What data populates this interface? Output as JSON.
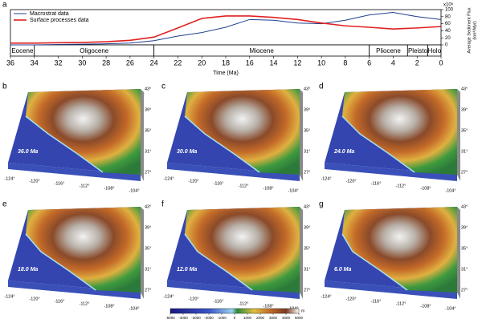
{
  "chart_data": {
    "type": "line",
    "panel_label": "a",
    "xlabel": "Time (Ma)",
    "ylabel": [
      "Average Sediment Flux",
      "(km³/Myr)"
    ],
    "y_scale_label": "x10⁶",
    "y_axis_side": "right",
    "x": [
      36,
      34,
      32,
      30,
      28,
      26,
      24,
      22,
      20,
      18,
      16,
      14,
      12,
      10,
      8,
      6,
      4,
      2,
      0
    ],
    "xlim": [
      36,
      0
    ],
    "xticks": [
      36,
      34,
      32,
      30,
      28,
      26,
      24,
      22,
      20,
      18,
      16,
      14,
      12,
      10,
      8,
      6,
      4,
      2,
      0
    ],
    "ylim": [
      0,
      100
    ],
    "yticks": [
      0,
      20,
      40,
      60,
      80,
      100
    ],
    "legend": "upper left",
    "series": [
      {
        "name": "Macrostrat data",
        "color": "#1f3f8f",
        "values": [
          0,
          0,
          1,
          2,
          3,
          5,
          12,
          25,
          35,
          50,
          72,
          70,
          62,
          60,
          70,
          85,
          92,
          80,
          72
        ]
      },
      {
        "name": "Surface processes data",
        "color": "#e02020",
        "values": [
          5,
          5,
          6,
          7,
          9,
          13,
          22,
          48,
          75,
          82,
          82,
          78,
          72,
          62,
          54,
          50,
          45,
          48,
          52
        ]
      }
    ],
    "epochs": [
      {
        "name": "Eocene",
        "start": 36,
        "end": 34
      },
      {
        "name": "Oligocene",
        "start": 34,
        "end": 24
      },
      {
        "name": "Miocene",
        "start": 24,
        "end": 6
      },
      {
        "name": "Pliocene",
        "start": 6,
        "end": 2.8
      },
      {
        "name": "Pleisto",
        "start": 2.8,
        "end": 1.1
      },
      {
        "name": "Holo",
        "start": 1.1,
        "end": 0
      }
    ]
  },
  "maps": [
    {
      "letter": "b",
      "age": "36.0 Ma"
    },
    {
      "letter": "c",
      "age": "30.0 Ma"
    },
    {
      "letter": "d",
      "age": "24.0 Ma"
    },
    {
      "letter": "e",
      "age": "18.0 Ma"
    },
    {
      "letter": "f",
      "age": "12.0 Ma"
    },
    {
      "letter": "g",
      "age": "6.0 Ma"
    }
  ],
  "longitudes": [
    "-124°",
    "-120°",
    "-116°",
    "-112°",
    "-108°",
    "-104°"
  ],
  "latitudes": [
    "43°",
    "39°",
    "35°",
    "31°",
    "27°"
  ],
  "colorbar": {
    "ticks": [
      -5000,
      -4000,
      -3000,
      -2000,
      -1000,
      0,
      1000,
      2000,
      3000,
      4000,
      5000
    ],
    "unit": "m"
  }
}
